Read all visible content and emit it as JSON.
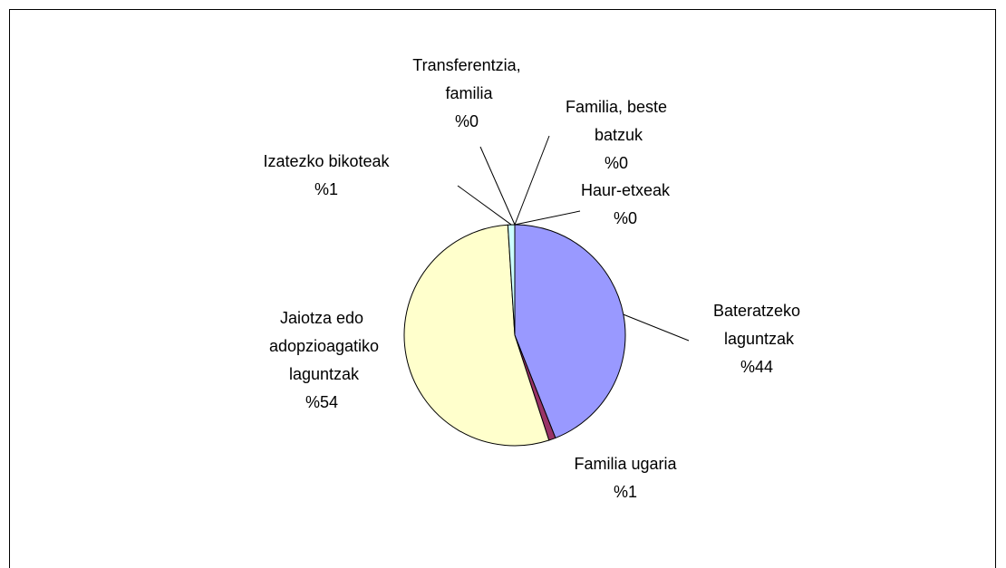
{
  "chart_data": {
    "type": "pie",
    "categories": [
      "Haur-etxeak",
      "Bateratzeko laguntzak",
      "Familia ugaria",
      "Jaiotza edo adopzioagatiko laguntzak",
      "Izatezko bikoteak",
      "Transferentzia, familia",
      "Familia, beste batzuk"
    ],
    "values": [
      0,
      44,
      1,
      54,
      1,
      0,
      0
    ],
    "value_labels": [
      "%0",
      "%44",
      "%1",
      "%54",
      "%1",
      "%0",
      "%0"
    ],
    "colors": [
      "#0066cc",
      "#9999ff",
      "#993366",
      "#ffffcc",
      "#ccffff",
      "#660066",
      "#ff8080"
    ]
  }
}
